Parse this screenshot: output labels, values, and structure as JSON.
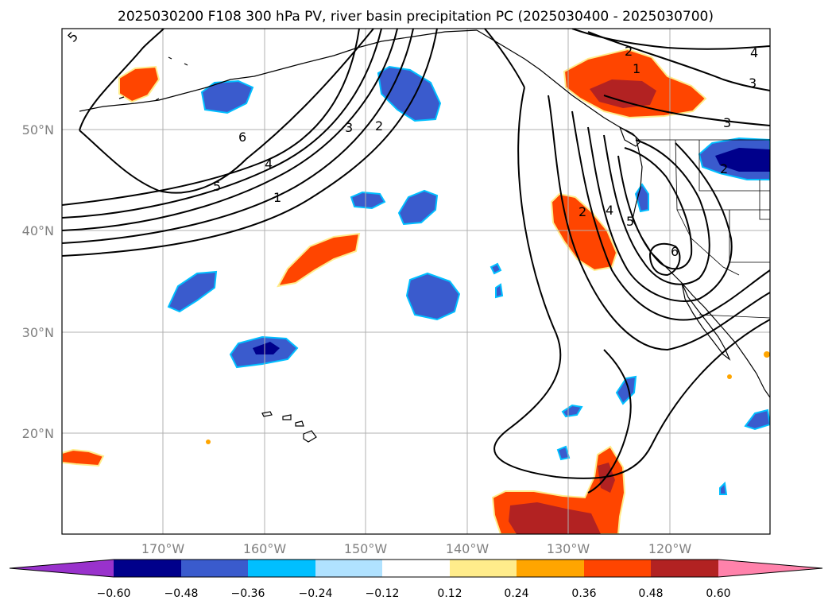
{
  "title": "2025030200 F108 300 hPa PV, river basin precipitation PC (2025030400 - 2025030700)",
  "lat_labels": [
    "50°N",
    "40°N",
    "30°N",
    "20°N"
  ],
  "lon_labels": [
    "170°W",
    "160°W",
    "150°W",
    "140°W",
    "130°W",
    "120°W"
  ],
  "pv_contour_labels": [
    "5",
    "6",
    "4",
    "5",
    "1",
    "3",
    "2",
    "2",
    "1",
    "3",
    "3",
    "4",
    "2",
    "4",
    "5",
    "6",
    "2"
  ],
  "colorbar": {
    "ticks": [
      "−0.60",
      "−0.48",
      "−0.36",
      "−0.24",
      "−0.12",
      "0.12",
      "0.24",
      "0.36",
      "0.48",
      "0.60"
    ],
    "colors": [
      "#9932cc",
      "#00008b",
      "#3a5bcd",
      "#00bfff",
      "#b0e2ff",
      "#ffffff",
      "#ffec8b",
      "#ffa500",
      "#ff4500",
      "#b22222",
      "#ff82ab"
    ]
  }
}
